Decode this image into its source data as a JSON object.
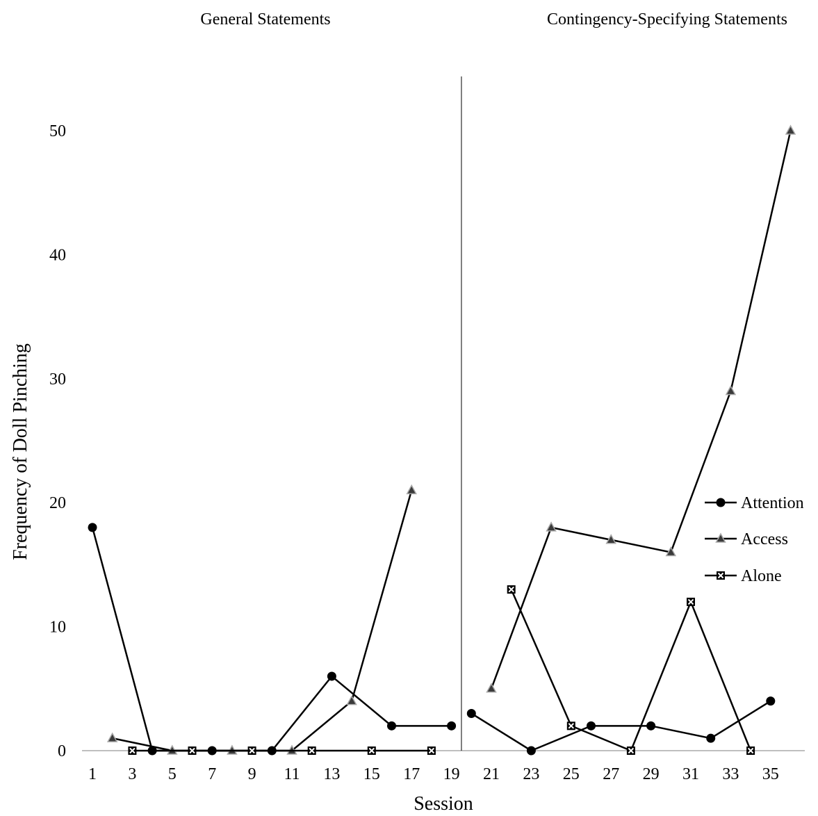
{
  "chart_data": {
    "type": "line",
    "xlabel": "Session",
    "ylabel": "Frequency of Doll Pinching",
    "xlim": [
      1,
      36
    ],
    "ylim": [
      0,
      50
    ],
    "x_ticks": [
      1,
      3,
      5,
      7,
      9,
      11,
      13,
      15,
      17,
      19,
      21,
      23,
      25,
      27,
      29,
      31,
      33,
      35
    ],
    "y_ticks": [
      0,
      10,
      20,
      30,
      40,
      50
    ],
    "grid": false,
    "legend_position": "right",
    "phases": [
      {
        "title": "General Statements",
        "x_start": 1,
        "x_end": 19
      },
      {
        "title": "Contingency-Specifying Statements",
        "x_start": 20,
        "x_end": 36
      }
    ],
    "phase_change_after": 19.5,
    "series": [
      {
        "name": "Attention",
        "marker": "circle",
        "segments": [
          [
            [
              1,
              18
            ],
            [
              4,
              0
            ],
            [
              7,
              0
            ],
            [
              10,
              0
            ],
            [
              13,
              6
            ],
            [
              16,
              2
            ],
            [
              19,
              2
            ]
          ],
          [
            [
              20,
              3
            ],
            [
              23,
              0
            ],
            [
              26,
              2
            ],
            [
              29,
              2
            ],
            [
              32,
              1
            ],
            [
              35,
              4
            ]
          ]
        ]
      },
      {
        "name": "Access",
        "marker": "triangle",
        "segments": [
          [
            [
              2,
              1
            ],
            [
              5,
              0
            ],
            [
              8,
              0
            ],
            [
              11,
              0
            ],
            [
              14,
              4
            ],
            [
              17,
              21
            ]
          ],
          [
            [
              21,
              5
            ],
            [
              24,
              18
            ],
            [
              27,
              17
            ],
            [
              30,
              16
            ],
            [
              33,
              29
            ],
            [
              36,
              50
            ]
          ]
        ]
      },
      {
        "name": "Alone",
        "marker": "cross-square",
        "segments": [
          [
            [
              3,
              0
            ],
            [
              6,
              0
            ],
            [
              9,
              0
            ],
            [
              12,
              0
            ],
            [
              15,
              0
            ],
            [
              18,
              0
            ]
          ],
          [
            [
              22,
              13
            ],
            [
              25,
              2
            ],
            [
              28,
              0
            ],
            [
              31,
              12
            ],
            [
              34,
              0
            ]
          ]
        ]
      }
    ]
  }
}
